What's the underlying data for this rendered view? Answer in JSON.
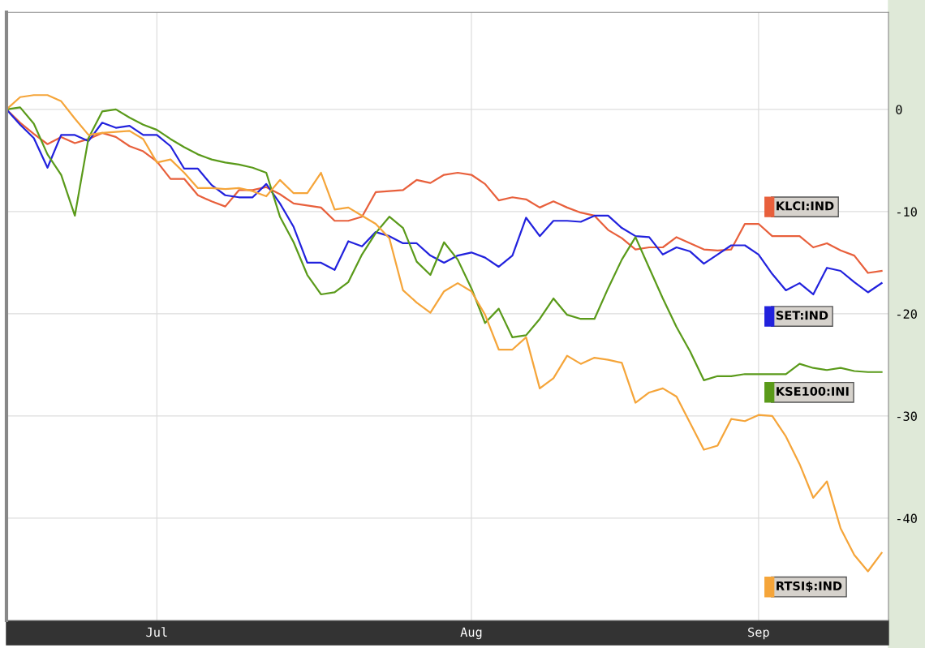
{
  "chart_data": {
    "type": "line",
    "categories": [
      null,
      null,
      null,
      null,
      null,
      null,
      null,
      null,
      null,
      null,
      null,
      "Jul",
      null,
      null,
      null,
      null,
      null,
      null,
      null,
      null,
      null,
      null,
      null,
      null,
      null,
      null,
      null,
      null,
      null,
      null,
      null,
      null,
      null,
      null,
      "Aug",
      null,
      null,
      null,
      null,
      null,
      null,
      null,
      null,
      null,
      null,
      null,
      null,
      null,
      null,
      null,
      null,
      null,
      null,
      null,
      null,
      "Sep",
      null,
      null,
      null,
      null,
      null,
      null,
      null,
      null,
      null
    ],
    "ylim": [
      -50,
      9.5
    ],
    "yticks": [
      0,
      -10,
      -20,
      -30,
      -40
    ],
    "grid": true,
    "legend": "right",
    "series": [
      {
        "name": "KLCI:IND",
        "color": "#e8603c",
        "values": [
          0,
          -1.3,
          -2.4,
          -3.4,
          -2.7,
          -3.3,
          -2.9,
          -2.3,
          -2.7,
          -3.6,
          -4.1,
          -5.1,
          -6.8,
          -6.8,
          -8.4,
          -9.0,
          -9.5,
          -7.9,
          -7.9,
          -7.6,
          -8.3,
          -9.2,
          -9.4,
          -9.6,
          -10.9,
          -10.9,
          -10.5,
          -8.1,
          -8.0,
          -7.9,
          -6.9,
          -7.2,
          -6.4,
          -6.2,
          -6.4,
          -7.3,
          -8.9,
          -8.6,
          -8.8,
          -9.6,
          -9.0,
          -9.6,
          -10.1,
          -10.4,
          -11.8,
          -12.6,
          -13.7,
          -13.5,
          -13.5,
          -12.5,
          -13.1,
          -13.7,
          -13.8,
          -13.7,
          -11.2,
          -11.2,
          -12.4,
          -12.4,
          -12.4,
          -13.5,
          -13.1,
          -13.8,
          -14.3,
          -16.0,
          -15.8
        ]
      },
      {
        "name": "SET:IND",
        "color": "#2222dd",
        "values": [
          0,
          -1.5,
          -2.8,
          -5.7,
          -2.5,
          -2.5,
          -3.1,
          -1.3,
          -1.8,
          -1.6,
          -2.5,
          -2.5,
          -3.6,
          -5.8,
          -5.8,
          -7.4,
          -8.4,
          -8.6,
          -8.6,
          -7.3,
          -9.2,
          -11.5,
          -15.0,
          -15.0,
          -15.7,
          -12.9,
          -13.4,
          -12.0,
          -12.4,
          -13.1,
          -13.1,
          -14.3,
          -15.0,
          -14.3,
          -14.0,
          -14.5,
          -15.4,
          -14.3,
          -10.6,
          -12.4,
          -10.9,
          -10.9,
          -11.0,
          -10.4,
          -10.4,
          -11.6,
          -12.4,
          -12.5,
          -14.2,
          -13.5,
          -13.9,
          -15.1,
          -14.2,
          -13.3,
          -13.3,
          -14.2,
          -16.1,
          -17.7,
          -17.0,
          -18.1,
          -15.5,
          -15.8,
          -16.9,
          -17.9,
          -17.0
        ]
      },
      {
        "name": "KSE100:INI",
        "color": "#5a9a1a",
        "values": [
          0,
          0.2,
          -1.4,
          -4.4,
          -6.4,
          -10.4,
          -2.8,
          -0.2,
          0.0,
          -0.8,
          -1.5,
          -2.0,
          -2.9,
          -3.7,
          -4.4,
          -4.9,
          -5.2,
          -5.4,
          -5.7,
          -6.2,
          -10.5,
          -13.0,
          -16.2,
          -18.1,
          -17.9,
          -16.9,
          -14.2,
          -12.1,
          -10.5,
          -11.6,
          -14.9,
          -16.2,
          -13.0,
          -14.7,
          -17.5,
          -20.9,
          -19.5,
          -22.3,
          -22.1,
          -20.5,
          -18.5,
          -20.1,
          -20.5,
          -20.5,
          -17.5,
          -14.7,
          -12.5,
          -15.5,
          -18.5,
          -21.3,
          -23.7,
          -26.5,
          -26.1,
          -26.1,
          -25.9,
          -25.9,
          -25.9,
          -25.9,
          -24.9,
          -25.3,
          -25.5,
          -25.3,
          -25.6,
          -25.7,
          -25.7
        ]
      },
      {
        "name": "RTSI$:IND",
        "color": "#f5a53a",
        "values": [
          0,
          1.2,
          1.4,
          1.4,
          0.8,
          -0.9,
          -2.5,
          -2.3,
          -2.2,
          -2.1,
          -2.9,
          -5.2,
          -4.9,
          -6.2,
          -7.7,
          -7.7,
          -7.8,
          -7.7,
          -8.0,
          -8.5,
          -6.9,
          -8.2,
          -8.2,
          -6.2,
          -9.8,
          -9.6,
          -10.4,
          -11.2,
          -12.6,
          -17.7,
          -18.9,
          -19.9,
          -17.8,
          -17.0,
          -17.8,
          -20.1,
          -23.5,
          -23.5,
          -22.3,
          -27.3,
          -26.3,
          -24.1,
          -24.9,
          -24.3,
          -24.5,
          -24.8,
          -28.7,
          -27.7,
          -27.3,
          -28.1,
          -30.7,
          -33.3,
          -32.9,
          -30.3,
          -30.5,
          -29.9,
          -30.0,
          -32.0,
          -34.7,
          -38.0,
          -36.4,
          -41.0,
          -43.6,
          -45.2,
          -43.4
        ]
      }
    ]
  }
}
